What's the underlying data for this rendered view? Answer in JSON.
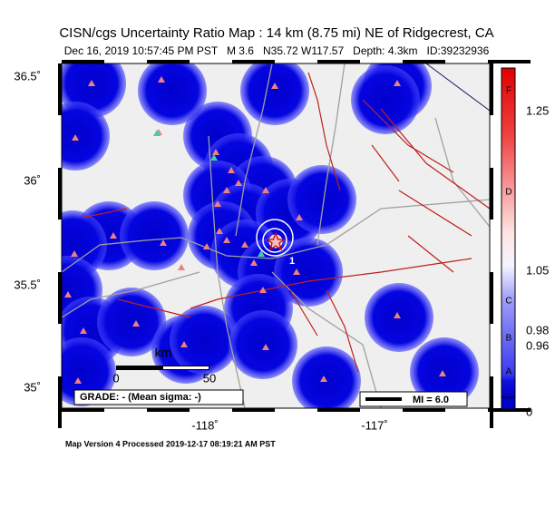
{
  "header": {
    "title": "CISN/cgs Uncertainty Ratio Map : 14 km (8.75 mi) NE of Ridgecrest, CA",
    "subtitle": "Dec 16, 2019 10:57:45 PM PST   M 3.6   N35.72 W117.57   Depth: 4.3km   ID:39232936"
  },
  "map": {
    "lat_labels": [
      "36.5˚",
      "36˚",
      "35.5˚",
      "35˚"
    ],
    "lon_labels": [
      "-118˚",
      "-117˚"
    ],
    "scale": {
      "unit": "km",
      "start": "0",
      "end": "50"
    },
    "grade": "GRADE: - (Mean sigma: -)",
    "mi_legend": "MI = 6.0",
    "contour_label": "1"
  },
  "colorbar": {
    "grades": [
      "F",
      "D",
      "C",
      "B",
      "A"
    ],
    "ticks": [
      "1.25",
      "1.05",
      "0.98",
      "0.96",
      "0"
    ]
  },
  "footer": "Map Version 4 Processed 2019-12-17 08:19:21 AM PST"
}
